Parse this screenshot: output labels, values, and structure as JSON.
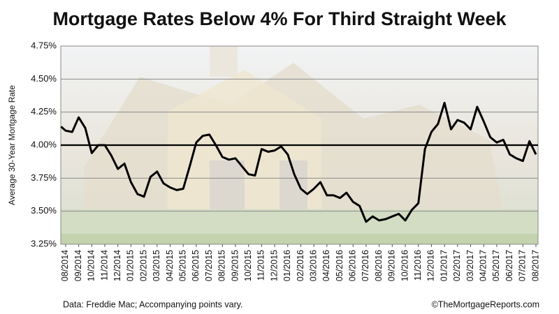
{
  "chart_data": {
    "type": "line",
    "title": "Mortgage Rates Below 4% For Third Straight Week",
    "y_label": "Average 30-Year Mortgage Rate",
    "source": "Data: Freddie Mac; Accompanying points vary.",
    "credit": "©TheMortgageReports.com",
    "reference_line": 4.0,
    "grid": true,
    "xlim": [
      -0.37,
      36.16
    ],
    "ylim": [
      3.25,
      4.75
    ],
    "yticks": [
      {
        "value": 3.25,
        "label": "3.25%"
      },
      {
        "value": 3.5,
        "label": "3.50%"
      },
      {
        "value": 3.75,
        "label": "3.75%"
      },
      {
        "value": 4.0,
        "label": "4.00%"
      },
      {
        "value": 4.25,
        "label": "4.25%"
      },
      {
        "value": 4.5,
        "label": "4.50%"
      },
      {
        "value": 4.75,
        "label": "4.75%"
      }
    ],
    "xticks": [
      {
        "value": 0,
        "label": "08/2014"
      },
      {
        "value": 1,
        "label": "09/2014"
      },
      {
        "value": 2,
        "label": "10/2014"
      },
      {
        "value": 3,
        "label": "11/2014"
      },
      {
        "value": 4,
        "label": "12/2014"
      },
      {
        "value": 5,
        "label": "01/2015"
      },
      {
        "value": 6,
        "label": "02/2015"
      },
      {
        "value": 7,
        "label": "03/2015"
      },
      {
        "value": 8,
        "label": "04/2015"
      },
      {
        "value": 9,
        "label": "05/2015"
      },
      {
        "value": 10,
        "label": "06/2015"
      },
      {
        "value": 11,
        "label": "07/2015"
      },
      {
        "value": 12,
        "label": "08/2015"
      },
      {
        "value": 13,
        "label": "09/2015"
      },
      {
        "value": 14,
        "label": "10/2015"
      },
      {
        "value": 15,
        "label": "11/2015"
      },
      {
        "value": 16,
        "label": "12/2015"
      },
      {
        "value": 17,
        "label": "01/2016"
      },
      {
        "value": 18,
        "label": "02/2016"
      },
      {
        "value": 19,
        "label": "03/2016"
      },
      {
        "value": 20,
        "label": "04/2016"
      },
      {
        "value": 21,
        "label": "05/2016"
      },
      {
        "value": 22,
        "label": "06/2016"
      },
      {
        "value": 23,
        "label": "07/2016"
      },
      {
        "value": 24,
        "label": "08/2016"
      },
      {
        "value": 25,
        "label": "09/2016"
      },
      {
        "value": 26,
        "label": "10/2016"
      },
      {
        "value": 27,
        "label": "11/2016"
      },
      {
        "value": 28,
        "label": "12/2016"
      },
      {
        "value": 29,
        "label": "01/2017"
      },
      {
        "value": 30,
        "label": "02/2017"
      },
      {
        "value": 31,
        "label": "03/2017"
      },
      {
        "value": 32,
        "label": "04/2017"
      },
      {
        "value": 33,
        "label": "05/2017"
      },
      {
        "value": 34,
        "label": "06/2017"
      },
      {
        "value": 35,
        "label": "07/2017"
      },
      {
        "value": 36,
        "label": "08/2017"
      }
    ],
    "x": [
      -0.35,
      0,
      0.5,
      1,
      1.5,
      2,
      2.5,
      3,
      3.5,
      4,
      4.5,
      5,
      5.5,
      6,
      6.5,
      7,
      7.5,
      8,
      8.5,
      9,
      9.5,
      10,
      10.5,
      11,
      11.5,
      12,
      12.5,
      13,
      13.5,
      14,
      14.5,
      15,
      15.5,
      16,
      16.5,
      17,
      17.5,
      18,
      18.5,
      19,
      19.5,
      20,
      20.5,
      21,
      21.5,
      22,
      22.5,
      23,
      23.5,
      24,
      24.5,
      25,
      25.5,
      26,
      26.5,
      27,
      27.5,
      28,
      28.5,
      29,
      29.5,
      30,
      30.5,
      31,
      31.5,
      32,
      32.5,
      33,
      33.5,
      34,
      34.5,
      35,
      35.5,
      36
    ],
    "series": [
      {
        "color": "#000000",
        "values": [
          4.14,
          4.11,
          4.1,
          4.21,
          4.13,
          3.94,
          4.0,
          4.0,
          3.92,
          3.82,
          3.86,
          3.72,
          3.63,
          3.61,
          3.76,
          3.8,
          3.71,
          3.68,
          3.66,
          3.67,
          3.84,
          4.02,
          4.07,
          4.08,
          4.0,
          3.91,
          3.89,
          3.9,
          3.84,
          3.78,
          3.77,
          3.97,
          3.95,
          3.96,
          3.99,
          3.93,
          3.78,
          3.67,
          3.63,
          3.67,
          3.72,
          3.62,
          3.62,
          3.6,
          3.64,
          3.57,
          3.54,
          3.42,
          3.46,
          3.43,
          3.44,
          3.46,
          3.48,
          3.43,
          3.51,
          3.56,
          3.97,
          4.1,
          4.16,
          4.32,
          4.12,
          4.19,
          4.17,
          4.12,
          4.29,
          4.18,
          4.06,
          4.02,
          4.04,
          3.93,
          3.9,
          3.88,
          4.03,
          3.93
        ]
      }
    ]
  }
}
